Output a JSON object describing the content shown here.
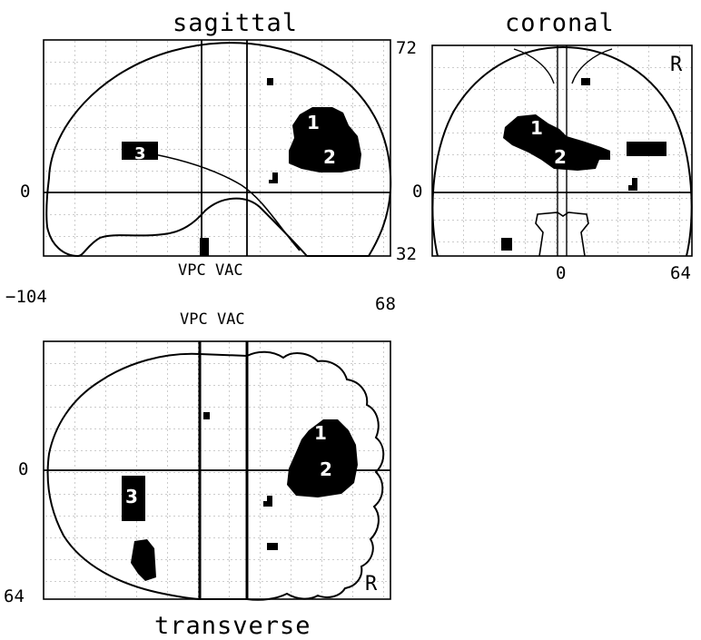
{
  "titles": {
    "sagittal": "sagittal",
    "coronal": "coronal",
    "transverse": "transverse"
  },
  "sagittal": {
    "y_origin": "0",
    "x_min": "−104",
    "x_max": "68",
    "vpc_vac": "VPC VAC",
    "clusters": [
      {
        "label": "1"
      },
      {
        "label": "2"
      },
      {
        "label": "3"
      }
    ]
  },
  "coronal": {
    "z_top": "72",
    "z_origin": "0",
    "z_bottom": "32",
    "x_zero": "0",
    "x_max": "64",
    "side_marker": "R",
    "clusters": [
      {
        "label": "1"
      },
      {
        "label": "2"
      }
    ]
  },
  "transverse": {
    "vpc_vac": "VPC VAC",
    "y_origin": "0",
    "y_bottom": "64",
    "side_marker": "R",
    "clusters": [
      {
        "label": "1"
      },
      {
        "label": "2"
      },
      {
        "label": "3"
      }
    ]
  },
  "colors": {
    "ink": "#000000",
    "paper": "#ffffff",
    "grid": "#9a9a9a"
  }
}
